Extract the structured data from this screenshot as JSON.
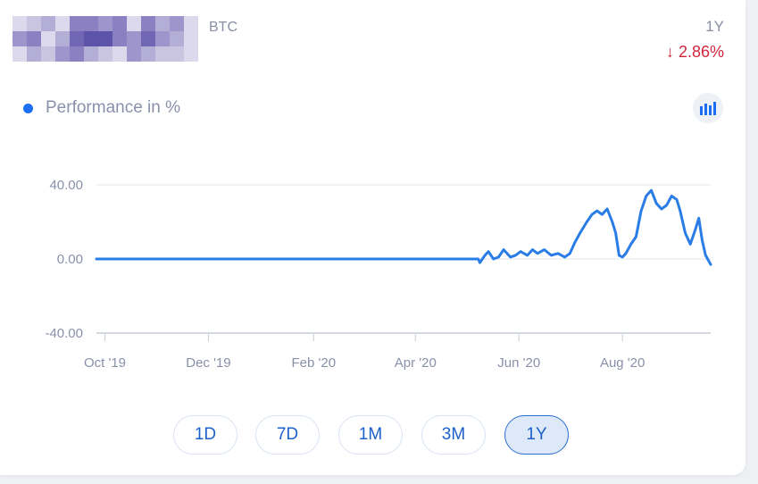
{
  "header": {
    "ticker": "BTC",
    "period": "1Y",
    "change": "↓ 2.86%"
  },
  "legend": {
    "label": "Performance in %",
    "toggle_icon": "bar-chart-icon"
  },
  "colors": {
    "line": "#2a7de6",
    "negative": "#d0263c",
    "accent": "#1b6ff0"
  },
  "range_buttons": [
    "1D",
    "7D",
    "1M",
    "3M",
    "1Y"
  ],
  "active_range": "1Y",
  "chart_data": {
    "type": "line",
    "ylim": [
      -40,
      40
    ],
    "y_ticks": [
      "40.00",
      "0.00",
      "-40.00"
    ],
    "x_ticks": [
      "Oct '19",
      "Dec '19",
      "Feb '20",
      "Apr '20",
      "Jun '20",
      "Aug '20"
    ],
    "grid": true,
    "series": [
      {
        "x": [
          "2019-09-26",
          "2020-05-08",
          "2020-05-09",
          "2020-05-12",
          "2020-05-14",
          "2020-05-17",
          "2020-05-20",
          "2020-05-23",
          "2020-05-27",
          "2020-05-30",
          "2020-06-02",
          "2020-06-06",
          "2020-06-09",
          "2020-06-12",
          "2020-06-16",
          "2020-06-20",
          "2020-06-24",
          "2020-06-28",
          "2020-07-01",
          "2020-07-04",
          "2020-07-07",
          "2020-07-09",
          "2020-07-11",
          "2020-07-14",
          "2020-07-17",
          "2020-07-20",
          "2020-07-23",
          "2020-07-26",
          "2020-07-28",
          "2020-07-30",
          "2020-08-01",
          "2020-08-03",
          "2020-08-06",
          "2020-08-09",
          "2020-08-12",
          "2020-08-15",
          "2020-08-18",
          "2020-08-21",
          "2020-08-24",
          "2020-08-27",
          "2020-08-30",
          "2020-09-02",
          "2020-09-04",
          "2020-09-07",
          "2020-09-10",
          "2020-09-13",
          "2020-09-15",
          "2020-09-17",
          "2020-09-19",
          "2020-09-22"
        ],
        "y": [
          0,
          0,
          -2,
          2,
          4,
          0,
          1,
          5,
          1,
          2,
          4,
          2,
          5,
          3,
          5,
          2,
          3,
          1,
          3,
          9,
          14,
          17,
          20,
          24,
          26,
          24,
          27,
          20,
          14,
          2,
          1,
          3,
          8,
          12,
          26,
          34,
          37,
          30,
          27,
          29,
          34,
          32,
          26,
          14,
          8,
          16,
          22,
          10,
          2,
          -3
        ]
      }
    ]
  }
}
